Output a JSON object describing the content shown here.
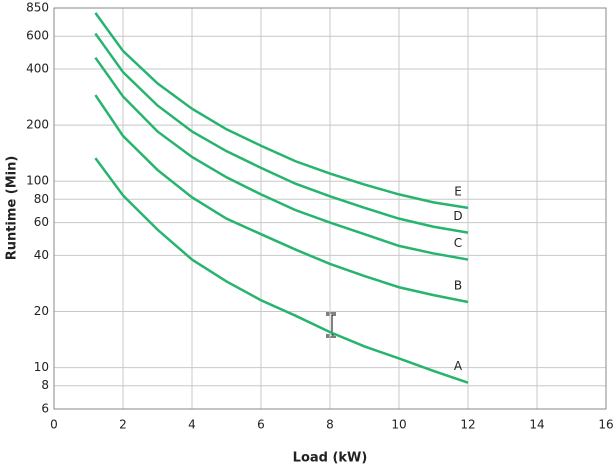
{
  "chart_data": {
    "type": "line",
    "log_y": true,
    "grid": true,
    "xlabel": "Load (kW)",
    "ylabel": "Runtime (Min)",
    "x": [
      1.2,
      2,
      3,
      4,
      5,
      6,
      7,
      8,
      9,
      10,
      11,
      12
    ],
    "xlim": [
      0,
      16
    ],
    "xticks": [
      0,
      2,
      4,
      6,
      8,
      10,
      12,
      14,
      16
    ],
    "ylim": [
      6,
      850
    ],
    "yticks": [
      6,
      8,
      10,
      20,
      40,
      60,
      80,
      100,
      200,
      400,
      600,
      850
    ],
    "series": [
      {
        "name": "A",
        "color": "#27b46e",
        "values": [
          133,
          84,
          55,
          38,
          29,
          23,
          19,
          15.5,
          13,
          11.2,
          9.6,
          8.3
        ]
      },
      {
        "name": "B",
        "color": "#27b46e",
        "values": [
          290,
          175,
          115,
          82,
          63,
          52,
          43,
          36,
          31,
          27,
          24.5,
          22.5
        ]
      },
      {
        "name": "C",
        "color": "#27b46e",
        "values": [
          460,
          285,
          185,
          135,
          105,
          85,
          70,
          60,
          52,
          45,
          41,
          38
        ]
      },
      {
        "name": "D",
        "color": "#27b46e",
        "values": [
          620,
          385,
          255,
          185,
          145,
          118,
          97,
          83,
          72,
          63,
          57,
          53
        ]
      },
      {
        "name": "E",
        "color": "#27b46e",
        "values": [
          800,
          500,
          335,
          245,
          190,
          155,
          128,
          110,
          96,
          85,
          77,
          72
        ]
      }
    ]
  }
}
